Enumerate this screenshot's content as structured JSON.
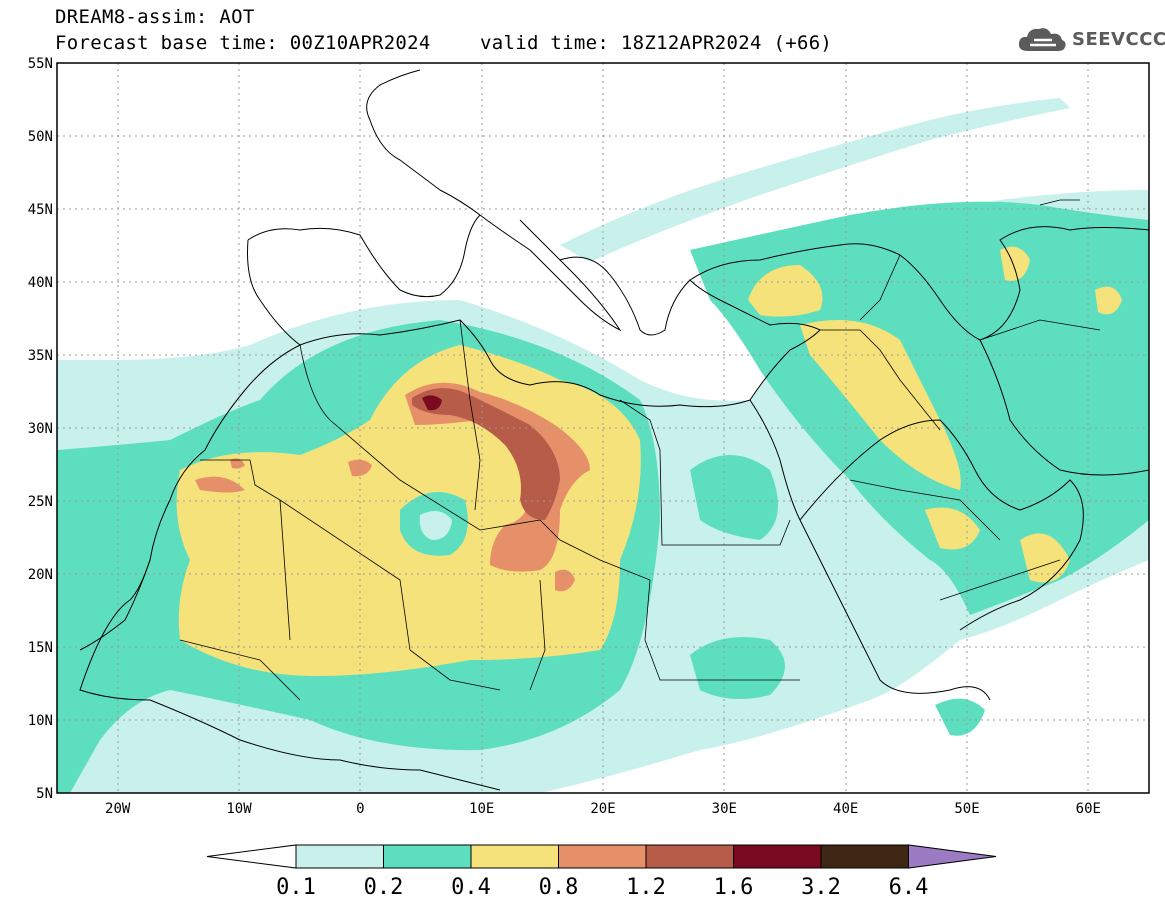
{
  "header": {
    "title_line1": "DREAM8-assim: AOT",
    "title_line2": "Forecast base time: 00Z10APR2024",
    "valid_time": "valid time: 18Z12APR2024 (+66)"
  },
  "logo": {
    "text": "SEEVCCC",
    "icon": "cloud-icon"
  },
  "map": {
    "lat_labels": [
      "55N",
      "50N",
      "45N",
      "40N",
      "35N",
      "30N",
      "25N",
      "20N",
      "15N",
      "10N",
      "5N"
    ],
    "lon_labels": [
      "20W",
      "10W",
      "0",
      "10E",
      "20E",
      "30E",
      "40E",
      "50E",
      "60E"
    ],
    "lat_range": [
      5,
      55
    ],
    "lon_range": [
      -25,
      65
    ],
    "grid": true
  },
  "colorbar": {
    "labels": [
      "0.1",
      "0.2",
      "0.4",
      "0.8",
      "1.2",
      "1.6",
      "3.2",
      "6.4"
    ],
    "colors": {
      "below": "#ffffff",
      "c1": "#c8f1ec",
      "c2": "#5ddfbf",
      "c3": "#f6e27a",
      "c4": "#e6906a",
      "c5": "#b85c4a",
      "c6": "#7a0a20",
      "c7": "#3e2714",
      "above": "#9b7cc4"
    }
  }
}
